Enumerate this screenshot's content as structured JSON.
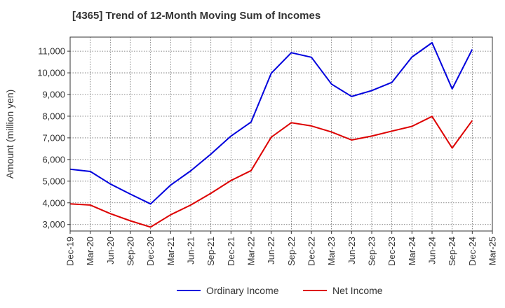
{
  "chart_data": {
    "type": "line",
    "title": "[4365]  Trend of 12-Month Moving Sum of Incomes",
    "xlabel": "",
    "ylabel": "Amount (million yen)",
    "ylim": [
      2700,
      11650
    ],
    "yticks": [
      3000,
      4000,
      5000,
      6000,
      7000,
      8000,
      9000,
      10000,
      11000
    ],
    "ytick_labels": [
      "3,000",
      "4,000",
      "5,000",
      "6,000",
      "7,000",
      "8,000",
      "9,000",
      "10,000",
      "11,000"
    ],
    "categories": [
      "Dec-19",
      "Mar-20",
      "Jun-20",
      "Sep-20",
      "Dec-20",
      "Mar-21",
      "Jun-21",
      "Sep-21",
      "Dec-21",
      "Mar-22",
      "Jun-22",
      "Sep-22",
      "Dec-22",
      "Mar-23",
      "Jun-23",
      "Sep-23",
      "Dec-23",
      "Mar-24",
      "Jun-24",
      "Sep-24",
      "Dec-24",
      "Mar-25"
    ],
    "grid": true,
    "legend_position": "bottom",
    "series": [
      {
        "name": "Ordinary Income",
        "color": "#0000dd",
        "values": [
          5550,
          5450,
          4870,
          4400,
          3950,
          4820,
          5480,
          6250,
          7080,
          7730,
          9980,
          10930,
          10720,
          9480,
          8910,
          9180,
          9560,
          10730,
          11390,
          9260,
          11080,
          null
        ]
      },
      {
        "name": "Net Income",
        "color": "#dd0000",
        "values": [
          3950,
          3900,
          3500,
          3170,
          2880,
          3450,
          3900,
          4440,
          5030,
          5490,
          7030,
          7700,
          7550,
          7270,
          6900,
          7080,
          7310,
          7530,
          7990,
          6530,
          7800,
          null
        ]
      }
    ]
  }
}
